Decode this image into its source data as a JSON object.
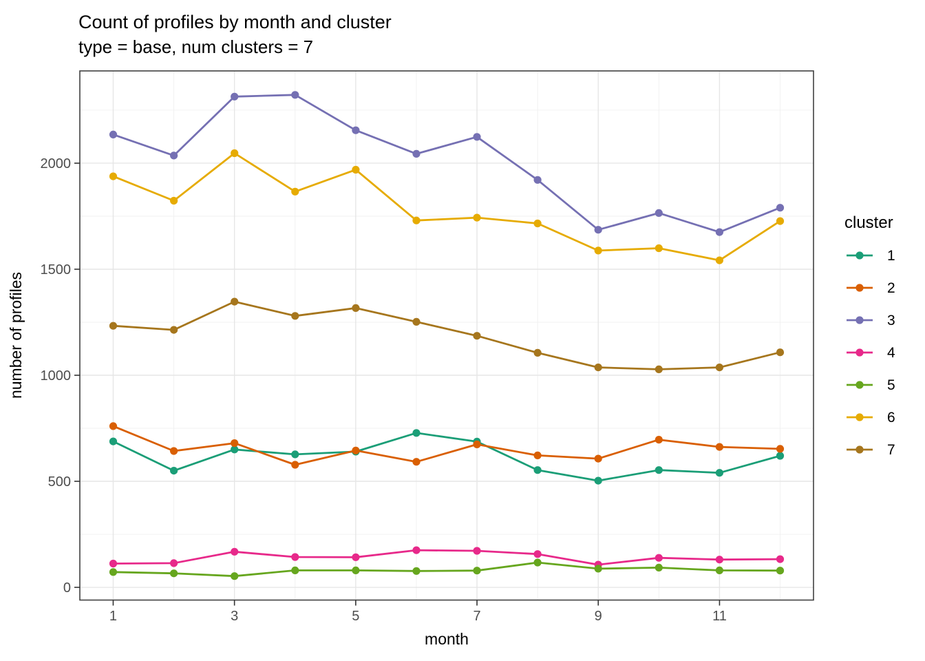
{
  "title": "Count of profiles by month and cluster",
  "subtitle": "type = base, num clusters = 7",
  "chart_data": {
    "type": "line",
    "title": "Count of profiles by month and cluster",
    "subtitle": "type = base, num clusters = 7",
    "xlabel": "month",
    "ylabel": "number of profiles",
    "legend_title": "cluster",
    "legend_position": "right",
    "grid": "major-and-minor",
    "x": [
      1,
      2,
      3,
      4,
      5,
      6,
      7,
      8,
      9,
      10,
      11,
      12
    ],
    "x_tick_labels": [
      "1",
      "3",
      "5",
      "7",
      "9",
      "11"
    ],
    "x_ticks": [
      1,
      3,
      5,
      7,
      9,
      11
    ],
    "x_minor_ticks": [
      2,
      4,
      6,
      8,
      10,
      12
    ],
    "y_tick_labels": [
      "0",
      "500",
      "1000",
      "1500",
      "2000"
    ],
    "y_ticks": [
      0,
      500,
      1000,
      1500,
      2000
    ],
    "y_minor_ticks": [
      250,
      750,
      1250,
      1750,
      2250
    ],
    "xlim": [
      0.45,
      12.55
    ],
    "ylim": [
      -60,
      2435
    ],
    "series": [
      {
        "name": "1",
        "color": "#1b9e77",
        "values": [
          688,
          550,
          650,
          627,
          640,
          728,
          687,
          553,
          503,
          553,
          540,
          620
        ]
      },
      {
        "name": "2",
        "color": "#d95f02",
        "values": [
          760,
          643,
          680,
          578,
          645,
          592,
          674,
          622,
          607,
          696,
          662,
          653
        ]
      },
      {
        "name": "3",
        "color": "#7570b3",
        "values": [
          2135,
          2036,
          2314,
          2322,
          2155,
          2044,
          2124,
          1921,
          1686,
          1765,
          1675,
          1790
        ]
      },
      {
        "name": "4",
        "color": "#e7298a",
        "values": [
          112,
          114,
          168,
          143,
          142,
          175,
          172,
          157,
          107,
          139,
          131,
          133
        ]
      },
      {
        "name": "5",
        "color": "#66a61e",
        "values": [
          72,
          66,
          53,
          80,
          80,
          77,
          79,
          117,
          88,
          93,
          80,
          79
        ]
      },
      {
        "name": "6",
        "color": "#e6ab02",
        "values": [
          1938,
          1823,
          2047,
          1866,
          1969,
          1730,
          1743,
          1716,
          1588,
          1599,
          1542,
          1727
        ]
      },
      {
        "name": "7",
        "color": "#a6761d",
        "values": [
          1233,
          1214,
          1347,
          1280,
          1317,
          1252,
          1186,
          1106,
          1037,
          1028,
          1037,
          1108
        ]
      }
    ]
  },
  "style_colors": {
    "panel_border": "#404040",
    "grid_major": "#e6e6e6",
    "grid_minor": "#f0f0f0",
    "tick_mark": "#333333",
    "tick_label": "#4d4d4d",
    "text": "#000000"
  }
}
